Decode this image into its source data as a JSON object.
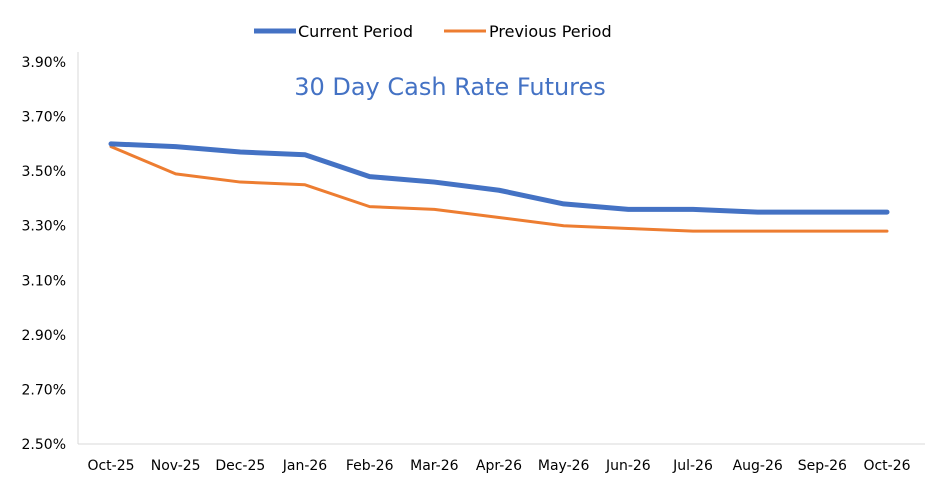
{
  "chart_data": {
    "type": "line",
    "title": "30 Day Cash Rate Futures",
    "xlabel": "",
    "ylabel": "",
    "categories": [
      "Oct-25",
      "Nov-25",
      "Dec-25",
      "Jan-26",
      "Feb-26",
      "Mar-26",
      "Apr-26",
      "May-26",
      "Jun-26",
      "Jul-26",
      "Aug-26",
      "Sep-26",
      "Oct-26"
    ],
    "series": [
      {
        "name": "Current Period",
        "color": "#4472C4",
        "values": [
          3.6,
          3.59,
          3.57,
          3.56,
          3.48,
          3.46,
          3.43,
          3.38,
          3.36,
          3.36,
          3.35,
          3.35,
          3.35
        ]
      },
      {
        "name": "Previous Period",
        "color": "#ED7D31",
        "values": [
          3.59,
          3.49,
          3.46,
          3.45,
          3.37,
          3.36,
          3.33,
          3.3,
          3.29,
          3.28,
          3.28,
          3.28,
          3.28
        ]
      }
    ],
    "ylim": [
      2.5,
      3.9
    ],
    "yticks": [
      "2.50%",
      "2.70%",
      "2.90%",
      "3.10%",
      "3.30%",
      "3.50%",
      "3.70%",
      "3.90%"
    ],
    "grid": false,
    "legend_position": "top"
  }
}
